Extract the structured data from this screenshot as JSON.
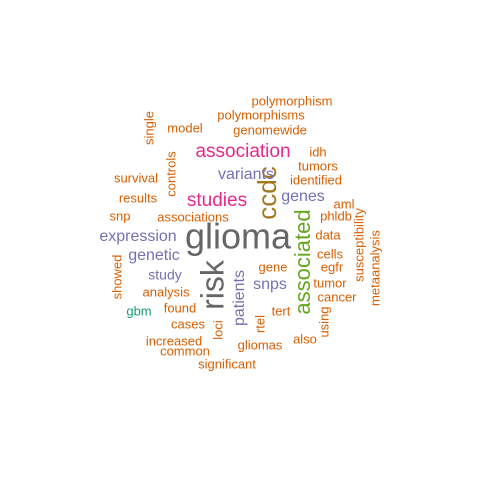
{
  "colors": {
    "orange": "#d95f02",
    "magenta": "#e7298a",
    "purple": "#7570b3",
    "green": "#66a61e",
    "gold": "#a6761d",
    "gray": "#666666",
    "teal": "#1b9e77"
  },
  "words": [
    {
      "text": "glioma",
      "color": "gray"
    },
    {
      "text": "risk",
      "color": "gray"
    },
    {
      "text": "ccdc",
      "color": "gold"
    },
    {
      "text": "associated",
      "color": "green"
    },
    {
      "text": "association",
      "color": "magenta"
    },
    {
      "text": "studies",
      "color": "magenta"
    },
    {
      "text": "variants",
      "color": "purple"
    },
    {
      "text": "expression",
      "color": "purple"
    },
    {
      "text": "genetic",
      "color": "purple"
    },
    {
      "text": "patients",
      "color": "purple"
    },
    {
      "text": "snps",
      "color": "purple"
    },
    {
      "text": "genes",
      "color": "purple"
    },
    {
      "text": "study",
      "color": "purple"
    },
    {
      "text": "polymorphism",
      "color": "orange"
    },
    {
      "text": "polymorphisms",
      "color": "orange"
    },
    {
      "text": "model",
      "color": "orange"
    },
    {
      "text": "genomewide",
      "color": "orange"
    },
    {
      "text": "single",
      "color": "orange"
    },
    {
      "text": "idh",
      "color": "orange"
    },
    {
      "text": "tumors",
      "color": "orange"
    },
    {
      "text": "survival",
      "color": "orange"
    },
    {
      "text": "controls",
      "color": "orange"
    },
    {
      "text": "identified",
      "color": "orange"
    },
    {
      "text": "results",
      "color": "orange"
    },
    {
      "text": "aml",
      "color": "orange"
    },
    {
      "text": "snp",
      "color": "orange"
    },
    {
      "text": "associations",
      "color": "orange"
    },
    {
      "text": "phldb",
      "color": "orange"
    },
    {
      "text": "susceptibility",
      "color": "orange"
    },
    {
      "text": "data",
      "color": "orange"
    },
    {
      "text": "metaanalysis",
      "color": "orange"
    },
    {
      "text": "cells",
      "color": "orange"
    },
    {
      "text": "gene",
      "color": "orange"
    },
    {
      "text": "egfr",
      "color": "orange"
    },
    {
      "text": "showed",
      "color": "orange"
    },
    {
      "text": "tumor",
      "color": "orange"
    },
    {
      "text": "analysis",
      "color": "orange"
    },
    {
      "text": "cancer",
      "color": "orange"
    },
    {
      "text": "found",
      "color": "orange"
    },
    {
      "text": "tert",
      "color": "orange"
    },
    {
      "text": "using",
      "color": "orange"
    },
    {
      "text": "cases",
      "color": "orange"
    },
    {
      "text": "loci",
      "color": "orange"
    },
    {
      "text": "rtel",
      "color": "orange"
    },
    {
      "text": "increased",
      "color": "orange"
    },
    {
      "text": "also",
      "color": "orange"
    },
    {
      "text": "gliomas",
      "color": "orange"
    },
    {
      "text": "common",
      "color": "orange"
    },
    {
      "text": "significant",
      "color": "orange"
    },
    {
      "text": "gbm",
      "color": "teal"
    }
  ]
}
